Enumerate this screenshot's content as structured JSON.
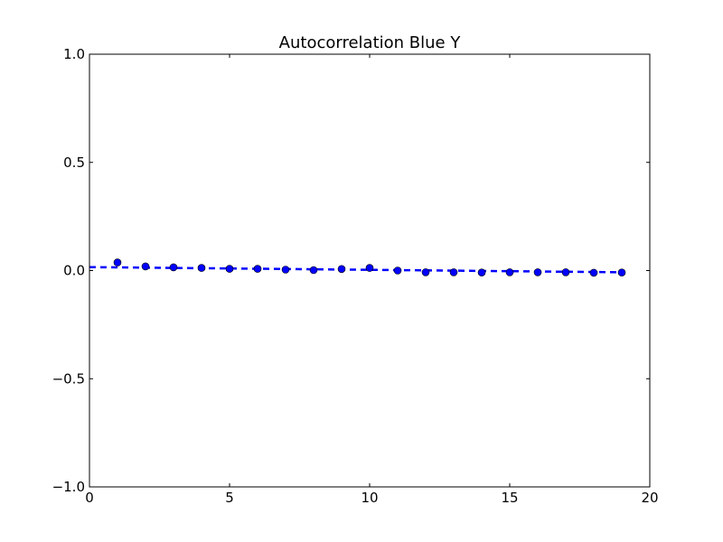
{
  "chart_data": {
    "type": "scatter",
    "title": "Autocorrelation Blue Y",
    "xlabel": "",
    "ylabel": "",
    "xlim": [
      0,
      20
    ],
    "ylim": [
      -1.0,
      1.0
    ],
    "grid": false,
    "x_ticks": [
      0,
      5,
      10,
      15,
      20
    ],
    "x_tick_labels": [
      "0",
      "5",
      "10",
      "15",
      "20"
    ],
    "y_ticks": [
      -1.0,
      -0.5,
      0.0,
      0.5,
      1.0
    ],
    "y_tick_labels": [
      "−1.0",
      "−0.5",
      "0.0",
      "0.5",
      "1.0"
    ],
    "series": [
      {
        "type": "scatter",
        "color": "#0000ff",
        "x": [
          1,
          2,
          3,
          4,
          5,
          6,
          7,
          8,
          9,
          10,
          11,
          12,
          13,
          14,
          15,
          16,
          17,
          18,
          19
        ],
        "y": [
          0.037,
          0.019,
          0.015,
          0.012,
          0.008,
          0.008,
          0.004,
          0.002,
          0.007,
          0.012,
          0.0,
          -0.008,
          -0.008,
          -0.009,
          -0.008,
          -0.008,
          -0.008,
          -0.01,
          -0.009
        ]
      },
      {
        "type": "line",
        "style": "dashed",
        "color": "#0000ff",
        "x": [
          0,
          19
        ],
        "y": [
          0.016,
          -0.008
        ]
      }
    ]
  }
}
